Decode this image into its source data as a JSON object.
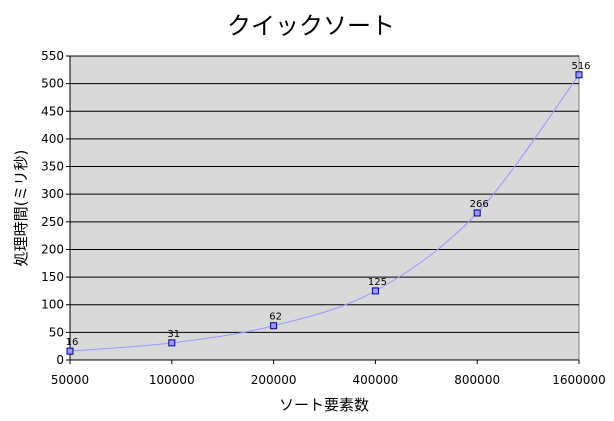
{
  "chart_data": {
    "type": "line",
    "title": "クイックソート",
    "xlabel": "ソート要素数",
    "ylabel": "処理時間(ミリ秒)",
    "categories": [
      "50000",
      "100000",
      "200000",
      "400000",
      "800000",
      "1600000"
    ],
    "series": [
      {
        "values": [
          16,
          31,
          62,
          125,
          266,
          516
        ],
        "data_labels": [
          "16",
          "31",
          "62",
          "125",
          "266",
          "516"
        ]
      }
    ],
    "ylim": [
      0,
      550
    ],
    "yticks": [
      0,
      50,
      100,
      150,
      200,
      250,
      300,
      350,
      400,
      450,
      500,
      550
    ],
    "grid": true,
    "legend": "none",
    "colors": {
      "plot_bg": "#d9d9d9",
      "line": "#9999ff",
      "marker_fill": "#9999ff",
      "marker_edge": "#000080",
      "grid": "#000000"
    }
  }
}
